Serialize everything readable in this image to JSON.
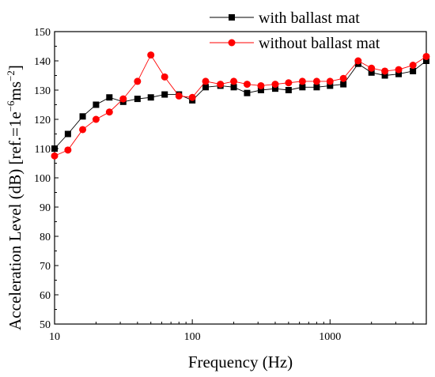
{
  "chart_data": {
    "type": "line",
    "xlabel": "Frequency (Hz)",
    "ylabel_main": "Acceleration Level (dB) [ref.=1e",
    "ylabel_sup": "−6",
    "ylabel_mid": "ms",
    "ylabel_sup2": "−2",
    "ylabel_end": "]",
    "xscale": "log",
    "xlim": [
      10,
      5000
    ],
    "ylim": [
      50,
      150
    ],
    "yticks": [
      50,
      60,
      70,
      80,
      90,
      100,
      110,
      120,
      130,
      140,
      150
    ],
    "xticks": [
      10,
      100,
      1000
    ],
    "xtick_labels": [
      "10",
      "100",
      "1000"
    ],
    "grid": false,
    "legend_position": "top-right",
    "x": [
      10,
      12.5,
      16,
      20,
      25,
      31.5,
      40,
      50,
      63,
      80,
      100,
      125,
      160,
      200,
      250,
      315,
      400,
      500,
      630,
      800,
      1000,
      1250,
      1600,
      2000,
      2500,
      3150,
      4000,
      5000
    ],
    "series": [
      {
        "name": "with ballast mat",
        "color": "#000000",
        "marker": "square",
        "values": [
          110,
          115,
          121,
          125,
          127.5,
          126,
          127,
          127.5,
          128.5,
          128.5,
          126.5,
          131,
          131.5,
          131,
          129,
          130,
          130.5,
          130,
          131,
          131,
          131.5,
          132,
          139,
          136,
          135,
          135.5,
          136.5,
          140
        ]
      },
      {
        "name": "without ballast mat",
        "color": "#ff0000",
        "marker": "circle",
        "values": [
          107.5,
          109.5,
          116.5,
          120,
          122.5,
          127,
          133,
          142,
          134.5,
          128,
          127.5,
          133,
          132,
          133,
          132,
          131.5,
          132,
          132.5,
          133,
          133,
          133,
          134,
          140,
          137.5,
          136.5,
          137,
          138.5,
          141.5
        ]
      }
    ]
  }
}
